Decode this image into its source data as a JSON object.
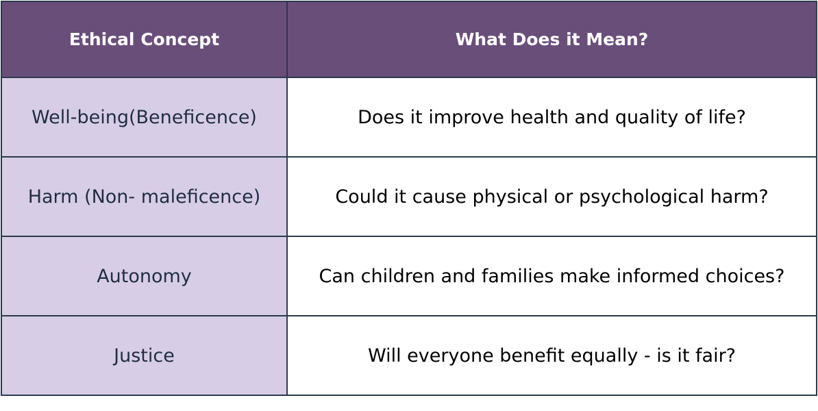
{
  "table": {
    "header": [
      "Ethical Concept",
      "What Does it Mean?"
    ],
    "rows": [
      [
        "Well-being(Beneficence)",
        "Does it improve health and quality of life?"
      ],
      [
        "Harm (Non- maleficence)",
        "Could it cause physical or psychological harm?"
      ],
      [
        "Autonomy",
        "Can children and families make informed choices?"
      ],
      [
        "Justice",
        "Will everyone benefit equally - is it fair?"
      ]
    ]
  }
}
